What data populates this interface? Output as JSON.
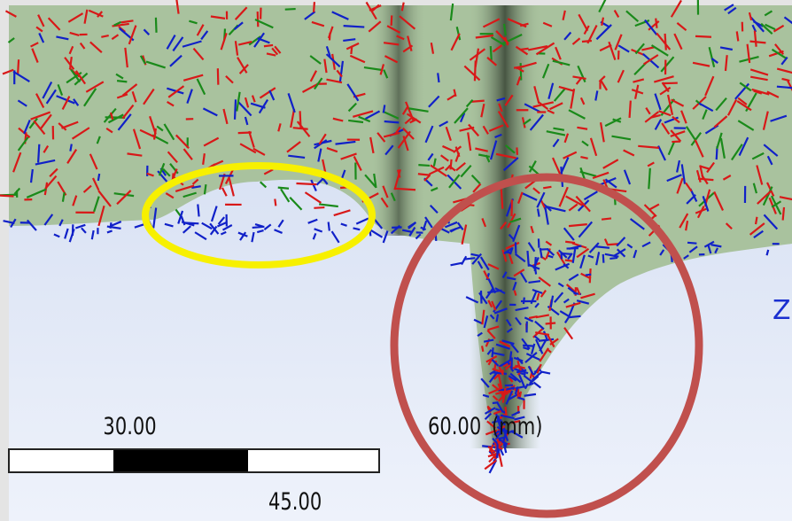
{
  "scale_bar": {
    "label_left": "30.00",
    "label_right": "60.00",
    "unit": "(mm)",
    "label_middle": "45.00"
  },
  "axis_label": "Z"
}
